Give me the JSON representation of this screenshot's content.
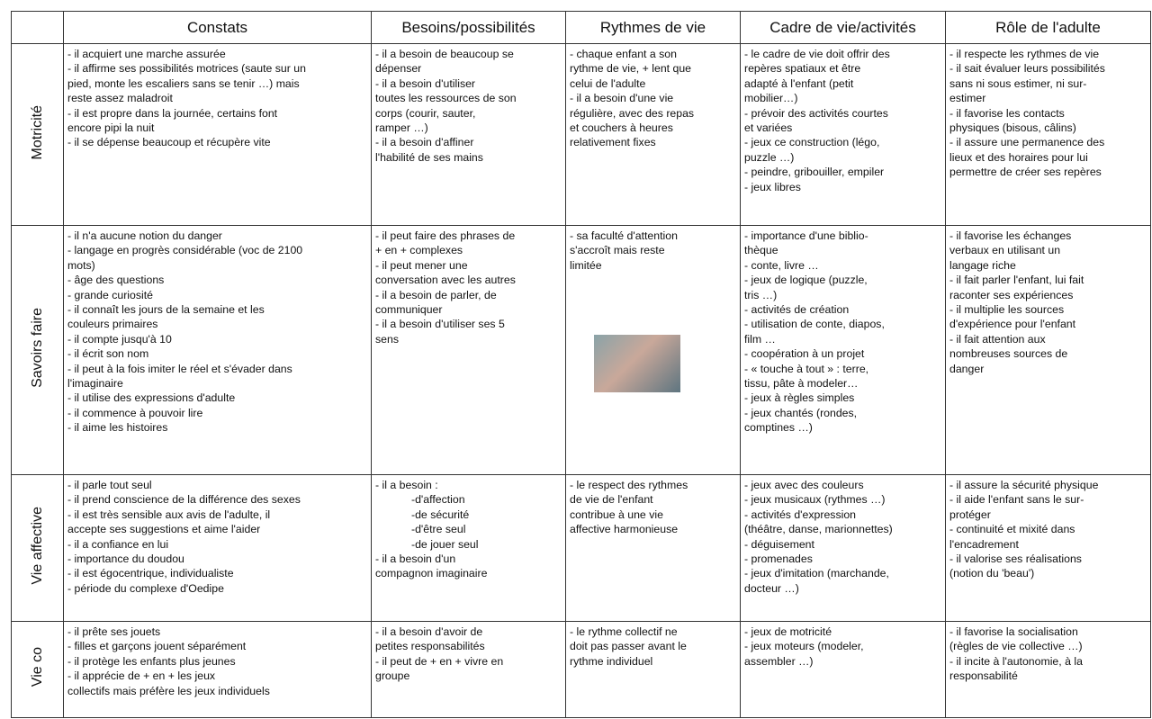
{
  "table": {
    "header": [
      "Constats",
      "Besoins/possibilités",
      "Rythmes de vie",
      "Cadre de vie/activités",
      "Rôle de l'adulte"
    ],
    "rows": [
      {
        "label": "Motricité",
        "cells": [
          [
            "- il acquiert une marche assurée",
            "- il affirme ses possibilités motrices (saute sur un",
            "pied, monte les escaliers sans se tenir …) mais",
            "reste assez maladroit",
            "- il est propre dans la journée, certains font",
            "encore pipi la nuit",
            "- il se dépense beaucoup et récupère vite"
          ],
          [
            "- il a besoin de beaucoup se",
            "dépenser",
            "- il a besoin d'utiliser",
            "toutes les ressources de son",
            "corps (courir, sauter,",
            "ramper …)",
            "- il a besoin d'affiner",
            "l'habilité de ses mains"
          ],
          [
            "- chaque enfant a son",
            "rythme de vie, + lent que",
            "celui de l'adulte",
            "- il a besoin d'une vie",
            "régulière, avec des repas",
            "et couchers à heures",
            "relativement fixes"
          ],
          [
            "- le cadre de vie doit offrir des",
            "repères spatiaux et être",
            "adapté à l'enfant (petit",
            "mobilier…)",
            "- prévoir des activités courtes",
            "et variées",
            "- jeux ce construction (légo,",
            "puzzle …)",
            "- peindre, gribouiller, empiler",
            "- jeux libres"
          ],
          [
            "- il respecte les rythmes de vie",
            "- il sait évaluer leurs possibilités",
            "sans ni sous estimer, ni sur-",
            "estimer",
            "- il favorise les contacts",
            "physiques (bisous, câlins)",
            "- il assure une permanence des",
            "lieux et des horaires pour lui",
            "permettre de créer ses repères"
          ]
        ]
      },
      {
        "label": "Savoirs faire",
        "cells": [
          [
            "- il n'a aucune notion du danger",
            "- langage en progrès considérable (voc de 2100",
            "mots)",
            "- âge des questions",
            "- grande curiosité",
            "- il connaît les jours de la semaine et les",
            "couleurs primaires",
            "- il compte jusqu'à 10",
            "- il écrit son nom",
            "- il peut à la fois imiter le réel et s'évader dans",
            "l'imaginaire",
            "- il utilise des expressions d'adulte",
            "- il commence à pouvoir lire",
            "- il aime les histoires"
          ],
          [
            "- il peut faire des phrases de",
            "+ en + complexes",
            "- il peut mener une",
            "conversation avec les autres",
            "- il a besoin de parler, de",
            "communiquer",
            "- il a besoin d'utiliser ses 5",
            "sens"
          ],
          [
            "- sa faculté d'attention",
            "s'accroît mais reste",
            "limitée"
          ],
          [
            "- importance d'une biblio-",
            "thèque",
            "- conte, livre …",
            "- jeux de logique (puzzle,",
            "tris …)",
            "- activités de création",
            "- utilisation de conte, diapos,",
            "film …",
            "- coopération à un projet",
            "- « touche à tout » : terre,",
            "tissu, pâte à modeler…",
            "- jeux à règles simples",
            "- jeux chantés (rondes,",
            "comptines …)"
          ],
          [
            "- il favorise les échanges",
            "verbaux en utilisant un",
            "langage riche",
            "- il fait parler l'enfant, lui fait",
            "raconter ses expériences",
            "- il multiplie les sources",
            "d'expérience pour l'enfant",
            "- il fait attention aux",
            "nombreuses sources de",
            "danger"
          ]
        ]
      },
      {
        "label": "Vie affective",
        "cells": [
          [
            "- il parle tout seul",
            "- il prend conscience de la différence des sexes",
            "- il est très sensible aux avis de l'adulte, il",
            "accepte ses suggestions et aime l'aider",
            "- il a confiance en lui",
            "- importance du doudou",
            "- il est égocentrique, individualiste",
            "- période du complexe d'Oedipe"
          ],
          [
            "- il a besoin :",
            "-d'affection",
            "-de sécurité",
            "-d'être seul",
            "-de jouer seul",
            "- il a  besoin d'un",
            "compagnon imaginaire"
          ],
          [
            "- le respect des rythmes",
            "de vie de l'enfant",
            "contribue à une vie",
            "affective harmonieuse"
          ],
          [
            "- jeux avec des couleurs",
            "- jeux musicaux (rythmes …)",
            "- activités d'expression",
            "(théâtre, danse, marionnettes)",
            "- déguisement",
            "- promenades",
            "- jeux d'imitation (marchande,",
            "docteur …)"
          ],
          [
            "- il assure la sécurité physique",
            "- il aide l'enfant sans le sur-",
            "protéger",
            "- continuité et mixité dans",
            "l'encadrement",
            "- il valorise ses réalisations",
            "(notion du 'beau')"
          ]
        ]
      },
      {
        "label": "Vie co",
        "cells": [
          [
            "- il prête ses jouets",
            "- filles et garçons jouent séparément",
            "- il protège les enfants plus jeunes",
            "- il apprécie de + en + les jeux",
            "collectifs mais préfère les jeux individuels"
          ],
          [
            "- il a besoin d'avoir de",
            "petites responsabilités",
            "- il peut de + en + vivre en",
            "groupe"
          ],
          [
            "- le rythme collectif ne",
            "doit pas passer avant le",
            "rythme individuel"
          ],
          [
            "- jeux de motricité",
            "- jeux moteurs (modeler,",
            "assembler …)"
          ],
          [
            "- il favorise la socialisation",
            "(règles de vie collective …)",
            "- il incite à l'autonomie, à la",
            "responsabilité"
          ]
        ]
      }
    ]
  }
}
